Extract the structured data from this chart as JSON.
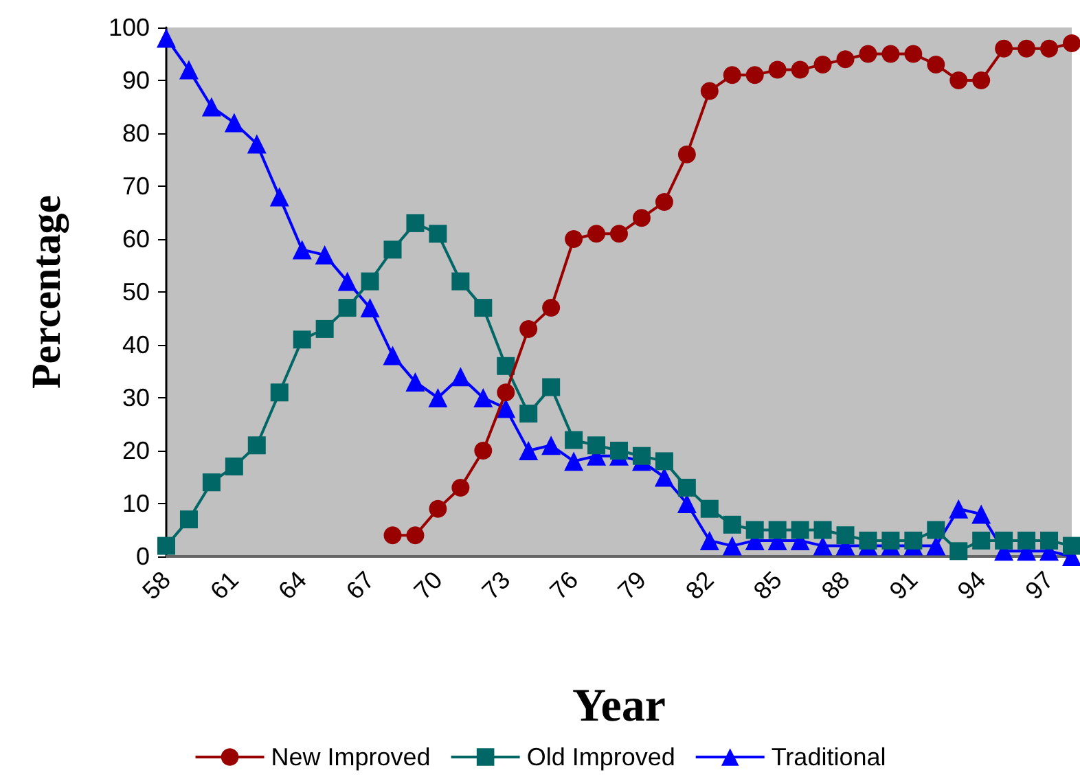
{
  "chart_data": {
    "type": "line",
    "xlabel": "Year",
    "ylabel": "Percentage",
    "categories": [
      "58",
      null,
      null,
      "61",
      null,
      null,
      "64",
      null,
      null,
      "67",
      null,
      null,
      "70",
      null,
      null,
      "73",
      null,
      null,
      "76",
      null,
      null,
      "79",
      null,
      null,
      "82",
      null,
      null,
      "85",
      null,
      null,
      "88",
      null,
      null,
      "91",
      null,
      null,
      "94",
      null,
      null,
      "97",
      null
    ],
    "series": [
      {
        "name": "New Improved",
        "color": "#990000",
        "marker": "circle",
        "values": [
          null,
          null,
          null,
          null,
          null,
          null,
          null,
          null,
          null,
          null,
          4,
          4,
          9,
          13,
          20,
          31,
          43,
          47,
          60,
          61,
          61,
          64,
          67,
          76,
          88,
          91,
          91,
          92,
          92,
          93,
          94,
          95,
          95,
          95,
          93,
          90,
          90,
          96,
          96,
          96,
          97
        ]
      },
      {
        "name": "Old Improved",
        "color": "#006666",
        "marker": "square",
        "values": [
          2,
          7,
          14,
          17,
          21,
          31,
          41,
          43,
          47,
          52,
          58,
          63,
          61,
          52,
          47,
          36,
          27,
          32,
          22,
          21,
          20,
          19,
          18,
          13,
          9,
          6,
          5,
          5,
          5,
          5,
          4,
          3,
          3,
          3,
          5,
          1,
          3,
          3,
          3,
          3,
          2
        ]
      },
      {
        "name": "Traditional",
        "color": "#0000ff",
        "marker": "triangle",
        "values": [
          98,
          92,
          85,
          82,
          78,
          68,
          58,
          57,
          52,
          47,
          38,
          33,
          30,
          34,
          30,
          28,
          20,
          21,
          18,
          19,
          19,
          18,
          15,
          10,
          3,
          2,
          3,
          3,
          3,
          2,
          2,
          2,
          2,
          2,
          2,
          9,
          8,
          1,
          1,
          1,
          0
        ]
      }
    ],
    "ylim": [
      0,
      100
    ],
    "yticks": [
      0,
      10,
      20,
      30,
      40,
      50,
      60,
      70,
      80,
      90,
      100
    ],
    "grid": false,
    "legend": "bottom"
  }
}
